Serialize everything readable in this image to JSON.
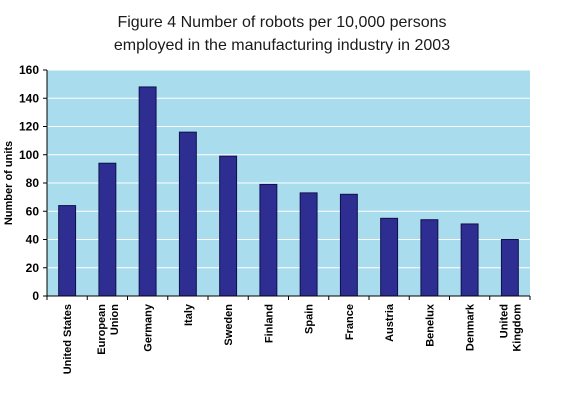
{
  "chart_data": {
    "type": "bar",
    "title_lines": [
      "Figure 4  Number of robots per 10,000 persons",
      "employed in the manufacturing industry in 2003"
    ],
    "xlabel": "",
    "ylabel": "Number of units",
    "ylim": [
      0,
      160
    ],
    "yticks": [
      0,
      20,
      40,
      60,
      80,
      100,
      120,
      140,
      160
    ],
    "grid": true,
    "legend": "none",
    "categories": [
      [
        "United States"
      ],
      [
        "European",
        "Union"
      ],
      [
        "Germany"
      ],
      [
        "Italy"
      ],
      [
        "Sweden"
      ],
      [
        "Finland"
      ],
      [
        "Spain"
      ],
      [
        "France"
      ],
      [
        "Austria"
      ],
      [
        "Benelux"
      ],
      [
        "Denmark"
      ],
      [
        "United",
        "Kingdom"
      ]
    ],
    "values": [
      64,
      94,
      148,
      116,
      99,
      79,
      73,
      72,
      55,
      54,
      51,
      40
    ],
    "colors": {
      "plot_background": "#a9dcec",
      "bar_fill": "#2e2e92",
      "bar_stroke": "#10104a",
      "gridline": "#ffffff",
      "axis": "#000000"
    }
  }
}
